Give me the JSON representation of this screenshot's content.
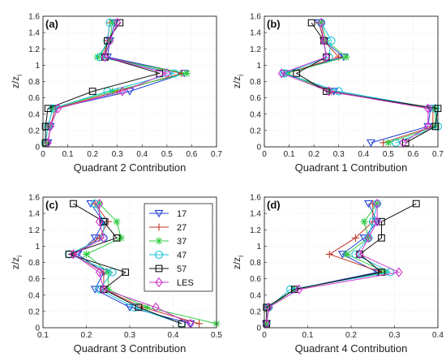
{
  "figure": {
    "ylabel_main": "z/z",
    "ylabel_sub": "i"
  },
  "legend": {
    "placement": "inside-top-right of panel (c)",
    "entries": [
      {
        "label": "17",
        "color": "#1f3fd8",
        "marker": "triangle-down"
      },
      {
        "label": "27",
        "color": "#c0392b",
        "marker": "plus"
      },
      {
        "label": "37",
        "color": "#2ecc40",
        "marker": "star"
      },
      {
        "label": "47",
        "color": "#17c2d8",
        "marker": "circle"
      },
      {
        "label": "57",
        "color": "#111111",
        "marker": "square"
      },
      {
        "label": "LES",
        "color": "#cc33cc",
        "marker": "diamond"
      }
    ]
  },
  "chart_data": [
    {
      "type": "line",
      "panel_label": "(a)",
      "xlabel": "Quadrant 2 Contribution",
      "ylabel": "z/z_i",
      "xlim": [
        0,
        0.7
      ],
      "ylim": [
        0,
        1.6
      ],
      "xticks": [
        "0",
        "0.1",
        "0.2",
        "0.3",
        "0.4",
        "0.5",
        "0.6",
        "0.7"
      ],
      "yticks": [
        "0",
        "0.2",
        "0.4",
        "0.6",
        "0.8",
        "1",
        "1.2",
        "1.4",
        "1.6"
      ],
      "grid": true,
      "y": [
        0.05,
        0.25,
        0.47,
        0.68,
        0.9,
        1.1,
        1.3,
        1.52
      ],
      "series": [
        {
          "name": "17",
          "x": [
            0.02,
            0.03,
            0.05,
            0.35,
            0.57,
            0.26,
            0.27,
            0.29
          ]
        },
        {
          "name": "27",
          "x": [
            0.02,
            0.03,
            0.05,
            0.3,
            0.56,
            0.24,
            0.26,
            0.27
          ]
        },
        {
          "name": "37",
          "x": [
            0.01,
            0.02,
            0.04,
            0.28,
            0.58,
            0.22,
            0.27,
            0.28
          ]
        },
        {
          "name": "47",
          "x": [
            0.01,
            0.02,
            0.04,
            0.26,
            0.53,
            0.23,
            0.26,
            0.27
          ]
        },
        {
          "name": "57",
          "x": [
            0.01,
            0.01,
            0.02,
            0.2,
            0.47,
            0.25,
            0.26,
            0.31
          ]
        },
        {
          "name": "LES",
          "x": [
            0.02,
            0.03,
            0.06,
            0.32,
            0.5,
            0.25,
            0.27,
            0.3
          ]
        }
      ]
    },
    {
      "type": "line",
      "panel_label": "(b)",
      "xlabel": "Quadrant 1 Contribution",
      "ylabel": "z/z_i",
      "xlim": [
        0,
        0.7
      ],
      "ylim": [
        0,
        1.6
      ],
      "xticks": [
        "0",
        "0.1",
        "0.2",
        "0.3",
        "0.4",
        "0.5",
        "0.6",
        "0.7"
      ],
      "yticks": [
        "0",
        "0.2",
        "0.4",
        "0.6",
        "0.8",
        "1",
        "1.2",
        "1.4",
        "1.6"
      ],
      "grid": true,
      "y": [
        0.05,
        0.25,
        0.47,
        0.68,
        0.9,
        1.1,
        1.3,
        1.52
      ],
      "series": [
        {
          "name": "17",
          "x": [
            0.43,
            0.66,
            0.67,
            0.28,
            0.08,
            0.32,
            0.24,
            0.22
          ]
        },
        {
          "name": "27",
          "x": [
            0.48,
            0.68,
            0.68,
            0.27,
            0.09,
            0.3,
            0.24,
            0.22
          ]
        },
        {
          "name": "37",
          "x": [
            0.5,
            0.69,
            0.69,
            0.26,
            0.09,
            0.33,
            0.25,
            0.23
          ]
        },
        {
          "name": "47",
          "x": [
            0.53,
            0.7,
            0.69,
            0.3,
            0.08,
            0.26,
            0.27,
            0.23
          ]
        },
        {
          "name": "57",
          "x": [
            0.57,
            0.69,
            0.7,
            0.25,
            0.13,
            0.25,
            0.24,
            0.19
          ]
        },
        {
          "name": "LES",
          "x": [
            0.56,
            0.66,
            0.66,
            0.26,
            0.07,
            0.25,
            0.24,
            0.23
          ]
        }
      ]
    },
    {
      "type": "line",
      "panel_label": "(c)",
      "xlabel": "Quadrant 3 Contribution",
      "ylabel": "z/z_i",
      "xlim": [
        0.1,
        0.5
      ],
      "ylim": [
        0,
        1.6
      ],
      "xticks": [
        "0.1",
        "0.2",
        "0.3",
        "0.4",
        "0.5"
      ],
      "yticks": [
        "0",
        "0.2",
        "0.4",
        "0.6",
        "0.8",
        "1",
        "1.2",
        "1.4",
        "1.6"
      ],
      "grid": true,
      "y": [
        0.05,
        0.25,
        0.47,
        0.68,
        0.9,
        1.1,
        1.3,
        1.52
      ],
      "series": [
        {
          "name": "17",
          "x": [
            0.44,
            0.3,
            0.22,
            0.24,
            0.18,
            0.22,
            0.24,
            0.21
          ]
        },
        {
          "name": "27",
          "x": [
            0.46,
            0.33,
            0.24,
            0.24,
            0.17,
            0.23,
            0.25,
            0.22
          ]
        },
        {
          "name": "37",
          "x": [
            0.5,
            0.34,
            0.25,
            0.25,
            0.2,
            0.28,
            0.27,
            0.23
          ]
        },
        {
          "name": "47",
          "x": [
            0.42,
            0.31,
            0.23,
            0.26,
            0.16,
            0.24,
            0.24,
            0.22
          ]
        },
        {
          "name": "57",
          "x": [
            0.42,
            0.32,
            0.24,
            0.29,
            0.16,
            0.27,
            0.24,
            0.17
          ]
        },
        {
          "name": "LES",
          "x": [
            0.44,
            0.36,
            0.24,
            0.23,
            0.17,
            0.24,
            0.23,
            0.23
          ]
        }
      ]
    },
    {
      "type": "line",
      "panel_label": "(d)",
      "xlabel": "Quadrant 4 Contribution",
      "ylabel": "z/z_i",
      "xlim": [
        0,
        0.4
      ],
      "ylim": [
        0,
        1.6
      ],
      "xticks": [
        "0",
        "0.1",
        "0.2",
        "0.3",
        "0.4"
      ],
      "yticks": [
        "0",
        "0.2",
        "0.4",
        "0.6",
        "0.8",
        "1",
        "1.2",
        "1.4",
        "1.6"
      ],
      "grid": true,
      "y": [
        0.05,
        0.25,
        0.47,
        0.68,
        0.9,
        1.1,
        1.3,
        1.52
      ],
      "series": [
        {
          "name": "17",
          "x": [
            0.005,
            0.01,
            0.07,
            0.26,
            0.18,
            0.23,
            0.26,
            0.24
          ]
        },
        {
          "name": "27",
          "x": [
            0.005,
            0.01,
            0.07,
            0.27,
            0.15,
            0.21,
            0.25,
            0.25
          ]
        },
        {
          "name": "37",
          "x": [
            0.005,
            0.01,
            0.07,
            0.28,
            0.19,
            0.24,
            0.23,
            0.26
          ]
        },
        {
          "name": "47",
          "x": [
            0.005,
            0.01,
            0.06,
            0.29,
            0.21,
            0.24,
            0.25,
            0.26
          ]
        },
        {
          "name": "57",
          "x": [
            0.005,
            0.005,
            0.07,
            0.27,
            0.22,
            0.27,
            0.27,
            0.35
          ]
        },
        {
          "name": "LES",
          "x": [
            0.005,
            0.01,
            0.08,
            0.31,
            0.22,
            0.24,
            0.26,
            0.26
          ]
        }
      ]
    }
  ]
}
